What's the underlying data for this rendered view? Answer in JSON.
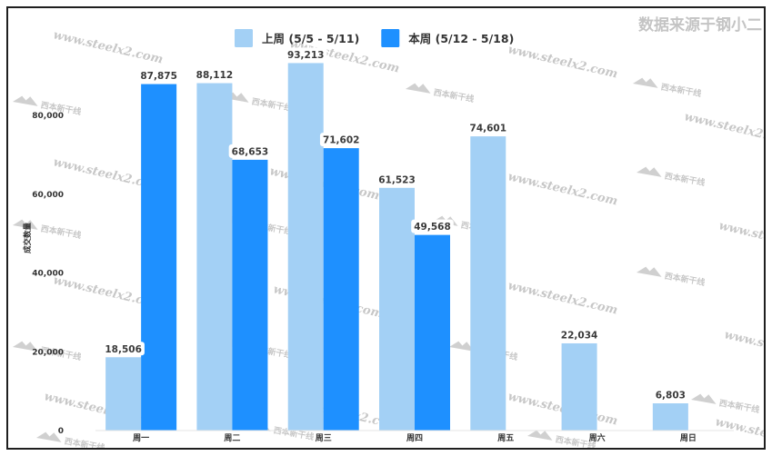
{
  "chart_data": {
    "type": "bar",
    "categories": [
      "周一",
      "周二",
      "周三",
      "周四",
      "周五",
      "周六",
      "周日"
    ],
    "series": [
      {
        "name": "上周 (5/5 - 5/11)",
        "color": "#A3D0F5",
        "values": [
          18506,
          88112,
          93213,
          61523,
          74601,
          22034,
          6803
        ]
      },
      {
        "name": "本周 (5/12 - 5/18)",
        "color": "#1E90FF",
        "values": [
          87875,
          68653,
          71602,
          49568,
          null,
          null,
          null
        ]
      }
    ],
    "xlabel": "",
    "ylabel": "成交数量",
    "ylim": [
      0,
      100000
    ],
    "yticks": [
      0,
      20000,
      40000,
      60000,
      80000
    ],
    "grid": false,
    "legend": "top",
    "data_labels": true
  },
  "credit": "数据来源于钢小二",
  "watermark": {
    "site": "www.steelx2.com",
    "brand": "西本新干线"
  }
}
